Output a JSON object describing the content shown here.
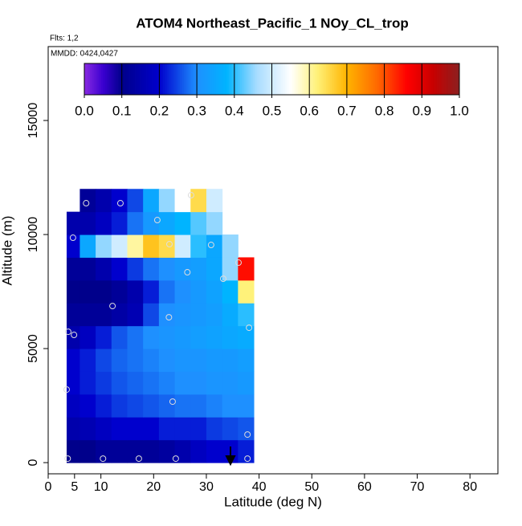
{
  "chart_data": {
    "type": "heatmap",
    "title": "ATOM4 Northeast_Pacific_1 NOy_CL_trop",
    "annotations": [
      "Flts: 1,2",
      "MMDD: 0424,0427"
    ],
    "x_label": "Latitude (deg N)",
    "y_label": "Altitude (m)",
    "xlim": [
      0,
      85.3
    ],
    "ylim": [
      -490,
      18240
    ],
    "xticks": [
      0,
      5,
      10,
      20,
      30,
      40,
      50,
      60,
      70,
      80
    ],
    "yticks": [
      0,
      5000,
      10000,
      15000
    ],
    "x_edges": [
      3.5,
      6,
      9,
      12,
      15,
      18,
      21,
      24,
      27,
      30,
      33,
      36,
      39
    ],
    "y_edges": [
      0,
      1000,
      2000,
      3000,
      4000,
      5000,
      6000,
      7000,
      8000,
      9000,
      10000,
      11000,
      12000
    ],
    "values": [
      [
        0.1,
        0.1,
        0.12,
        0.12,
        0.12,
        0.12,
        0.13,
        0.15,
        0.18,
        0.2,
        0.2,
        0.22
      ],
      [
        0.15,
        0.16,
        0.18,
        0.2,
        0.2,
        0.2,
        0.22,
        0.22,
        0.22,
        0.24,
        0.25,
        0.26
      ],
      [
        0.18,
        0.2,
        0.22,
        0.24,
        0.25,
        0.26,
        0.27,
        0.28,
        0.28,
        0.29,
        0.3,
        0.3
      ],
      [
        0.2,
        0.22,
        0.24,
        0.26,
        0.27,
        0.28,
        0.29,
        0.3,
        0.3,
        0.31,
        0.31,
        0.32
      ],
      [
        0.2,
        0.22,
        0.25,
        0.27,
        0.28,
        0.29,
        0.3,
        0.31,
        0.31,
        0.32,
        0.32,
        0.33
      ],
      [
        0.15,
        0.18,
        0.22,
        0.26,
        0.28,
        0.3,
        0.31,
        0.32,
        0.33,
        0.34,
        0.35,
        0.36
      ],
      [
        0.12,
        0.12,
        0.12,
        0.14,
        0.16,
        0.25,
        0.3,
        0.31,
        0.32,
        0.33,
        0.36,
        0.4
      ],
      [
        0.1,
        0.1,
        0.1,
        0.12,
        0.15,
        0.22,
        0.28,
        0.3,
        0.32,
        0.34,
        0.38,
        0.62
      ],
      [
        0.12,
        0.12,
        0.15,
        0.2,
        0.24,
        0.28,
        0.3,
        0.32,
        0.33,
        0.35,
        0.45,
        0.85
      ],
      [
        0.2,
        0.35,
        0.45,
        0.5,
        0.6,
        0.68,
        0.65,
        0.5,
        0.4,
        0.35,
        0.45,
        null
      ],
      [
        0.15,
        0.15,
        0.18,
        0.22,
        0.28,
        0.32,
        0.35,
        0.38,
        0.42,
        0.45,
        null,
        null
      ],
      [
        null,
        0.12,
        0.15,
        0.2,
        0.25,
        0.35,
        0.45,
        0.55,
        0.65,
        0.5,
        null,
        null
      ]
    ],
    "points": {
      "x": [
        3.7,
        10.4,
        17.2,
        24.2,
        37.8,
        3.5,
        23.6,
        37.8,
        3.8,
        4.9,
        38.1,
        22.9,
        12.2,
        33.2,
        26.4,
        36.1,
        30.9,
        23.0,
        4.7,
        20.7,
        7.2,
        13.7,
        27.1
      ],
      "y": [
        176,
        176,
        176,
        176,
        176,
        3204,
        2676,
        1232,
        5739,
        5599,
        5915,
        6373,
        6866,
        8063,
        8345,
        8768,
        9542,
        9577,
        9859,
        10634,
        11373,
        11373,
        11725
      ]
    },
    "colorscale": [
      [
        0,
        "#8a2be2"
      ],
      [
        0.05,
        "#3a00d0"
      ],
      [
        0.1,
        "#00008b"
      ],
      [
        0.2,
        "#0000cd"
      ],
      [
        0.3,
        "#1e90ff"
      ],
      [
        0.38,
        "#00b4ff"
      ],
      [
        0.46,
        "#a8dcff"
      ],
      [
        0.55,
        "#ffffff"
      ],
      [
        0.62,
        "#fff27a"
      ],
      [
        0.7,
        "#ffb400"
      ],
      [
        0.78,
        "#ff6a00"
      ],
      [
        0.86,
        "#ff0000"
      ],
      [
        0.93,
        "#c80000"
      ],
      [
        1,
        "#8b2020"
      ]
    ],
    "colorbar": {
      "lim": [
        0,
        1
      ],
      "ticks": [
        {
          "value": 0,
          "label": "0.0"
        },
        {
          "value": 0.1,
          "label": "0.1"
        },
        {
          "value": 0.2,
          "label": "0.2"
        },
        {
          "value": 0.3,
          "label": "0.3"
        },
        {
          "value": 0.4,
          "label": "0.4"
        },
        {
          "value": 0.5,
          "label": "0.5"
        },
        {
          "value": 0.6,
          "label": "0.6"
        },
        {
          "value": 0.7,
          "label": "0.7"
        },
        {
          "value": 0.8,
          "label": "0.8"
        },
        {
          "value": 0.9,
          "label": "0.9"
        },
        {
          "value": 1,
          "label": "1.0"
        }
      ]
    }
  }
}
